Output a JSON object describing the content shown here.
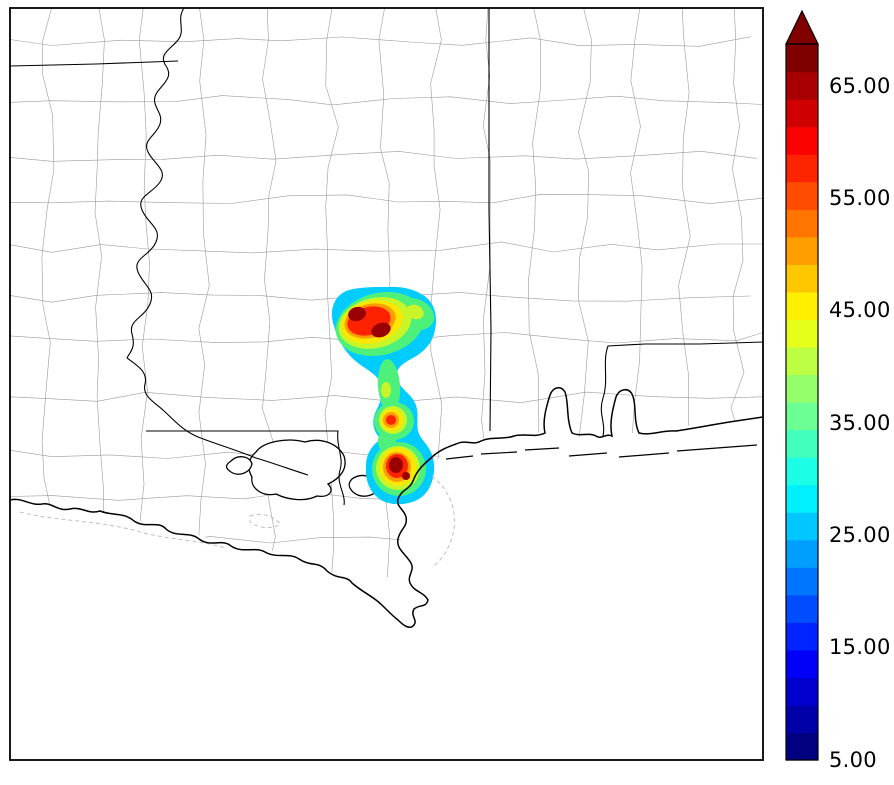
{
  "figure": {
    "description": "Radar reflectivity map over the Gulf Coast region with county and state boundaries and a vertical jet colorbar",
    "background": "#ffffff"
  },
  "map": {
    "frame_color": "#000000",
    "county_line_color": "#9b9b9b",
    "state_line_color": "#000000",
    "coastline_color": "#000000",
    "echo_levels": [
      {
        "value": 25,
        "color": "#00ccff"
      },
      {
        "value": 32,
        "color": "#4df07a"
      },
      {
        "value": 40,
        "color": "#c8f428"
      },
      {
        "value": 45,
        "color": "#ffe600"
      },
      {
        "value": 52,
        "color": "#ff9c00"
      },
      {
        "value": 58,
        "color": "#ff2200"
      },
      {
        "value": 65,
        "color": "#990000"
      }
    ]
  },
  "colorbar": {
    "tick_labels": [
      "65.00",
      "55.00",
      "45.00",
      "35.00",
      "25.00",
      "15.00",
      "5.00"
    ],
    "tick_values": [
      65,
      55,
      45,
      35,
      25,
      15,
      5
    ],
    "value_min": 5,
    "value_max": 68.6,
    "colormap": "jet",
    "extend": "max",
    "over_color": "#800000"
  },
  "chart_data": {
    "type": "heatmap",
    "title": "",
    "legend_position": "right",
    "value_range": [
      5,
      68.6
    ],
    "colorbar_ticks": [
      5,
      15,
      25,
      35,
      45,
      55,
      65
    ],
    "echo_maxima": [
      {
        "region": "north-lobe",
        "approx_peak": 67
      },
      {
        "region": "mid-cell",
        "approx_peak": 57
      },
      {
        "region": "south-lobe",
        "approx_peak": 67
      }
    ]
  }
}
